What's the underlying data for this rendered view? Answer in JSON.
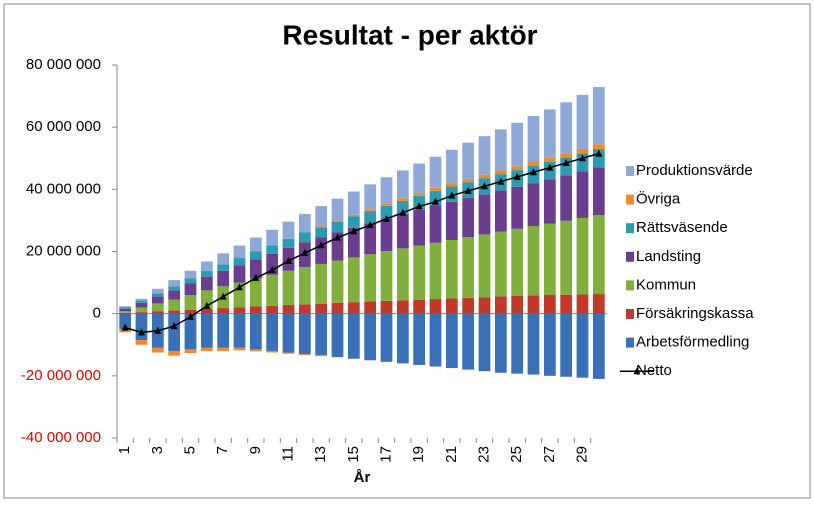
{
  "chart_data": {
    "type": "stacked-bar",
    "title": "Resultat - per aktör",
    "x_label": "År",
    "categories": [
      "1",
      null,
      "3",
      null,
      "5",
      null,
      "7",
      null,
      "9",
      null,
      "11",
      null,
      "13",
      null,
      "15",
      null,
      "17",
      null,
      "19",
      null,
      "21",
      null,
      "23",
      null,
      "25",
      null,
      "27",
      null,
      "29",
      null
    ],
    "ylim": [
      -40000000,
      80000000
    ],
    "yticks": [
      {
        "value": -40000000,
        "label": "-40 000 000"
      },
      {
        "value": -20000000,
        "label": "-20 000 000"
      },
      {
        "value": 0,
        "label": "0"
      },
      {
        "value": 20000000,
        "label": "20 000 000"
      },
      {
        "value": 40000000,
        "label": "40 000 000"
      },
      {
        "value": 60000000,
        "label": "60 000 000"
      },
      {
        "value": 80000000,
        "label": "80 000 000"
      }
    ],
    "negative_tick_color": "#e00000",
    "series": [
      {
        "name": "Arbetsförmedling",
        "color": "#3a70b8",
        "values": [
          -5000000,
          -8500000,
          -11000000,
          -12000000,
          -11500000,
          -11000000,
          -11000000,
          -11000000,
          -11500000,
          -12000000,
          -12500000,
          -13000000,
          -13500000,
          -14000000,
          -14500000,
          -15000000,
          -15500000,
          -16000000,
          -16500000,
          -17000000,
          -17500000,
          -18000000,
          -18500000,
          -19000000,
          -19300000,
          -19600000,
          -20000000,
          -20300000,
          -20600000,
          -21000000
        ]
      },
      {
        "name": "Försäkringskassa",
        "color": "#c0392b",
        "values": [
          300000,
          500000,
          800000,
          1000000,
          1200000,
          1500000,
          1800000,
          2000000,
          2300000,
          2500000,
          2800000,
          3000000,
          3200000,
          3500000,
          3700000,
          3900000,
          4100000,
          4300000,
          4500000,
          4700000,
          4900000,
          5100000,
          5300000,
          5500000,
          5700000,
          5900000,
          6000000,
          6100000,
          6200000,
          6300000
        ]
      },
      {
        "name": "Kommun",
        "color": "#7fb03b",
        "values": [
          500000,
          1500000,
          2500000,
          3500000,
          4800000,
          6000000,
          7000000,
          8000000,
          9000000,
          10000000,
          11000000,
          12000000,
          12800000,
          13600000,
          14400000,
          15200000,
          16000000,
          16700000,
          17400000,
          18100000,
          18800000,
          19500000,
          20200000,
          20900000,
          21600000,
          22300000,
          23000000,
          23800000,
          24600000,
          25400000
        ]
      },
      {
        "name": "Landsting",
        "color": "#6a3d8f",
        "values": [
          800000,
          1500000,
          2200000,
          3000000,
          3700000,
          4400000,
          5000000,
          5600000,
          6200000,
          6800000,
          7400000,
          8000000,
          8500000,
          9000000,
          9500000,
          10000000,
          10500000,
          11000000,
          11500000,
          12000000,
          12300000,
          12600000,
          12900000,
          13200000,
          13500000,
          13800000,
          14200000,
          14600000,
          15000000,
          15400000
        ]
      },
      {
        "name": "Rättsväsende",
        "color": "#2c9bb0",
        "values": [
          500000,
          800000,
          1000000,
          1300000,
          1600000,
          1900000,
          2100000,
          2300000,
          2500000,
          2700000,
          2900000,
          3100000,
          3300000,
          3500000,
          3700000,
          3900000,
          4100000,
          4300000,
          4500000,
          4700000,
          4900000,
          5100000,
          5200000,
          5300000,
          5400000,
          5500000,
          5600000,
          5700000,
          5800000,
          5900000
        ]
      },
      {
        "name": "Övriga",
        "color": "#f08a2c",
        "values": [
          -1000000,
          -1500000,
          -1500000,
          -1500000,
          -1200000,
          -1000000,
          -1000000,
          -800000,
          -600000,
          -500000,
          -400000,
          -300000,
          300000,
          400000,
          500000,
          600000,
          700000,
          800000,
          900000,
          1000000,
          1000000,
          1100000,
          1100000,
          1200000,
          1200000,
          1300000,
          1300000,
          1400000,
          1400000,
          1500000
        ]
      },
      {
        "name": "Produktionsvärde",
        "color": "#8ea9d8",
        "values": [
          300000,
          500000,
          1500000,
          2000000,
          2500000,
          3000000,
          3500000,
          4000000,
          4500000,
          5000000,
          5500000,
          6000000,
          6500000,
          7000000,
          7500000,
          8000000,
          8500000,
          9000000,
          9500000,
          10000000,
          10800000,
          11600000,
          12400000,
          13200000,
          14000000,
          14800000,
          15600000,
          16400000,
          17400000,
          18400000
        ]
      },
      {
        "name": "Netto",
        "color": "#000000",
        "type": "line",
        "values": [
          -4500000,
          -6000000,
          -5500000,
          -4000000,
          -1000000,
          2500000,
          5500000,
          8500000,
          11500000,
          14000000,
          17000000,
          19500000,
          22000000,
          24500000,
          26500000,
          28500000,
          30500000,
          32500000,
          34500000,
          36000000,
          38000000,
          39500000,
          41000000,
          42500000,
          44000000,
          45500000,
          47000000,
          48500000,
          50000000,
          51500000
        ]
      }
    ]
  }
}
